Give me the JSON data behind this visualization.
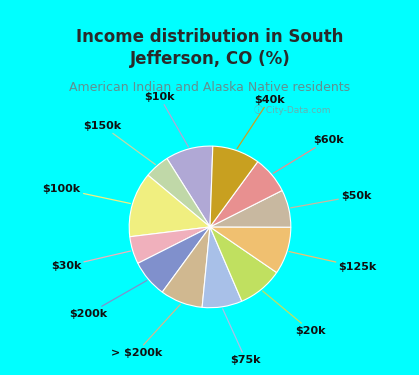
{
  "title": "Income distribution in South\nJefferson, CO (%)",
  "subtitle": "American Indian and Alaska Native residents",
  "watermark": "City-Data.com",
  "labels": [
    "$10k",
    "$150k",
    "$100k",
    "$30k",
    "$200k",
    "> $200k",
    "$75k",
    "$20k",
    "$125k",
    "$50k",
    "$60k",
    "$40k"
  ],
  "sizes": [
    9.5,
    5.0,
    13.0,
    5.5,
    7.5,
    8.5,
    8.0,
    9.0,
    9.5,
    7.5,
    7.5,
    9.5
  ],
  "colors": [
    "#b0a8d5",
    "#c0d8a8",
    "#f0ef80",
    "#f0b0bc",
    "#8090cc",
    "#d0b890",
    "#a8c0e8",
    "#c0e060",
    "#f0c070",
    "#c8b8a0",
    "#e89090",
    "#c8a020"
  ],
  "bg_color": "#00ffff",
  "chart_bg": "#e8f5ee",
  "title_color": "#2a2a2a",
  "subtitle_color": "#609090",
  "title_fontsize": 12,
  "subtitle_fontsize": 9,
  "label_fontsize": 8,
  "startangle": 88,
  "line_colors": [
    "#b0a8d5",
    "#c0d8a8",
    "#f0ef80",
    "#f0b0bc",
    "#8090cc",
    "#d0b890",
    "#a8c0e8",
    "#c0e060",
    "#f0c070",
    "#c8b8a0",
    "#e89090",
    "#c8a020"
  ]
}
